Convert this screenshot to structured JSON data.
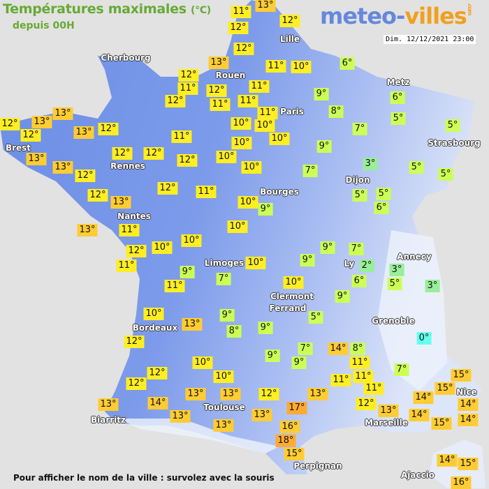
{
  "header": {
    "title": "Températures maximales",
    "unit": "(°C)",
    "subtitle": "depuis 00H",
    "date": "Dim. 12/12/2021 23:00"
  },
  "logo": {
    "part1": "meteo-",
    "part2": "villes",
    "suffix": ".com"
  },
  "footer": "Pour afficher le nom de la ville : survolez avec la souris",
  "colors": {
    "cold": "#66ffee",
    "cool": "#99ee99",
    "mild": "#ccff55",
    "warm": "#ffee22",
    "hot": "#ffcc33",
    "veryhot": "#ffaa33",
    "land_west": "#6a8de6",
    "land_east": "#e8eefa",
    "sea": "#e2e2e2"
  },
  "cities": [
    "Cherbourg",
    "Lille",
    "Rouen",
    "Paris",
    "Metz",
    "Strasbourg",
    "Brest",
    "Rennes",
    "Nantes",
    "Dijon",
    "Bourges",
    "Limoges",
    "Ly",
    "Annecy",
    "Clermont",
    "Ferrand",
    "Grenoble",
    "Bordeaux",
    "Toulouse",
    "Biarritz",
    "Marseille",
    "Nice",
    "Perpignan",
    "Ajaccio"
  ],
  "temperatures": [
    11,
    13,
    12,
    12,
    12,
    6,
    11,
    10,
    13,
    12,
    11,
    12,
    11,
    11,
    11,
    12,
    9,
    6,
    11,
    8,
    5,
    10,
    10,
    12,
    12,
    13,
    13,
    13,
    12,
    7,
    5,
    11,
    10,
    10,
    9,
    13,
    12,
    12,
    12,
    10,
    13,
    12,
    10,
    7,
    3,
    5,
    5,
    12,
    11,
    12,
    13,
    10,
    9,
    5,
    5,
    6,
    13,
    11,
    10,
    12,
    10,
    10,
    9,
    7,
    11,
    10,
    9,
    2,
    3,
    9,
    11,
    7,
    6,
    5,
    3,
    10,
    9,
    10,
    13,
    9,
    8,
    9,
    5,
    0,
    12,
    7,
    9,
    9,
    14,
    8,
    11,
    10,
    7,
    12,
    12,
    10,
    11,
    11,
    15,
    15,
    13,
    13,
    12,
    13,
    11,
    12,
    13,
    14,
    14,
    13,
    14,
    17,
    13,
    13,
    14,
    14,
    13,
    16,
    15,
    18,
    15,
    14,
    15,
    16
  ]
}
